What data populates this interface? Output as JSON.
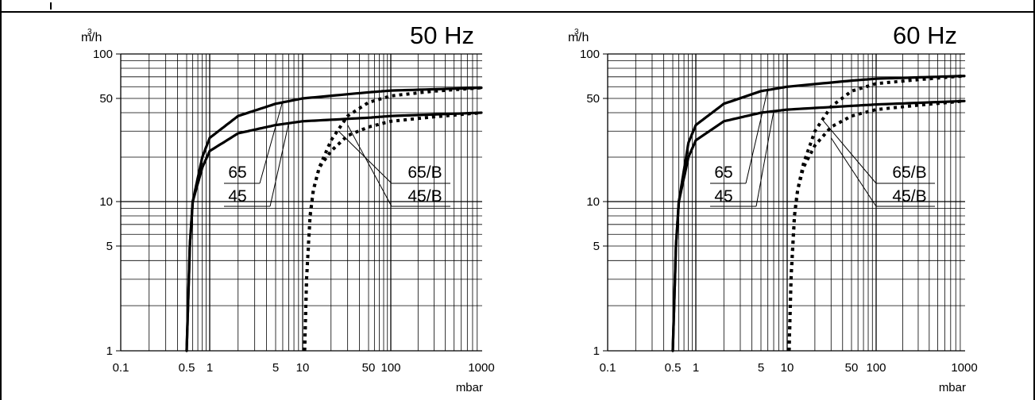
{
  "chart_data": [
    {
      "type": "line",
      "title": "50 Hz",
      "ylabel": "m³/h",
      "xlabel": "mbar",
      "xscale": "log",
      "yscale": "log",
      "xlim": [
        0.1,
        1000
      ],
      "ylim": [
        1,
        100
      ],
      "grid": true,
      "x_tick_labels": [
        "0.1",
        "0.5",
        "1",
        "5",
        "10",
        "50",
        "100",
        "1000"
      ],
      "y_tick_labels": [
        "1",
        "5",
        "10",
        "50",
        "100"
      ],
      "series": [
        {
          "name": "65",
          "style": "solid",
          "points": [
            [
              0.5,
              1
            ],
            [
              0.55,
              5
            ],
            [
              0.6,
              10
            ],
            [
              0.8,
              20
            ],
            [
              1,
              27
            ],
            [
              2,
              38
            ],
            [
              5,
              46
            ],
            [
              10,
              50
            ],
            [
              50,
              55
            ],
            [
              100,
              56.5
            ],
            [
              1000,
              59
            ]
          ]
        },
        {
          "name": "45",
          "style": "solid",
          "points": [
            [
              0.5,
              1
            ],
            [
              0.55,
              5
            ],
            [
              0.6,
              10
            ],
            [
              0.8,
              17
            ],
            [
              1,
              22
            ],
            [
              2,
              29
            ],
            [
              5,
              33
            ],
            [
              10,
              35
            ],
            [
              50,
              37
            ],
            [
              100,
              38
            ],
            [
              1000,
              40
            ]
          ]
        },
        {
          "name": "65/B",
          "style": "dotted",
          "points": [
            [
              10.5,
              1
            ],
            [
              11,
              3
            ],
            [
              12,
              8
            ],
            [
              13,
              12
            ],
            [
              15,
              17
            ],
            [
              20,
              26
            ],
            [
              30,
              38
            ],
            [
              50,
              47
            ],
            [
              100,
              52
            ],
            [
              300,
              56
            ],
            [
              1000,
              59
            ]
          ]
        },
        {
          "name": "45/B",
          "style": "dotted",
          "points": [
            [
              10.5,
              1
            ],
            [
              11,
              3
            ],
            [
              12,
              8
            ],
            [
              13,
              12
            ],
            [
              15,
              17
            ],
            [
              20,
              22
            ],
            [
              30,
              28
            ],
            [
              50,
              32
            ],
            [
              100,
              35
            ],
            [
              300,
              37.5
            ],
            [
              1000,
              40
            ]
          ]
        }
      ]
    },
    {
      "type": "line",
      "title": "60 Hz",
      "ylabel": "m³/h",
      "xlabel": "mbar",
      "xscale": "log",
      "yscale": "log",
      "xlim": [
        0.1,
        1000
      ],
      "ylim": [
        1,
        100
      ],
      "grid": true,
      "x_tick_labels": [
        "0.1",
        "0.5",
        "1",
        "5",
        "10",
        "50",
        "100",
        "1000"
      ],
      "y_tick_labels": [
        "1",
        "5",
        "10",
        "50",
        "100"
      ],
      "series": [
        {
          "name": "65",
          "style": "solid",
          "points": [
            [
              0.5,
              1
            ],
            [
              0.55,
              5
            ],
            [
              0.6,
              10
            ],
            [
              0.8,
              25
            ],
            [
              1,
              33
            ],
            [
              2,
              46
            ],
            [
              5,
              56
            ],
            [
              10,
              60
            ],
            [
              50,
              66
            ],
            [
              100,
              68
            ],
            [
              1000,
              71
            ]
          ]
        },
        {
          "name": "45",
          "style": "solid",
          "points": [
            [
              0.5,
              1
            ],
            [
              0.55,
              5
            ],
            [
              0.6,
              10
            ],
            [
              0.8,
              20
            ],
            [
              1,
              26
            ],
            [
              2,
              35
            ],
            [
              5,
              40
            ],
            [
              10,
              42
            ],
            [
              50,
              44.5
            ],
            [
              100,
              45.5
            ],
            [
              1000,
              48
            ]
          ]
        },
        {
          "name": "65/B",
          "style": "dotted",
          "points": [
            [
              10.5,
              1
            ],
            [
              11,
              3
            ],
            [
              12,
              8
            ],
            [
              13,
              12
            ],
            [
              15,
              18
            ],
            [
              20,
              30
            ],
            [
              30,
              44
            ],
            [
              50,
              56
            ],
            [
              100,
              63
            ],
            [
              300,
              67
            ],
            [
              1000,
              71
            ]
          ]
        },
        {
          "name": "45/B",
          "style": "dotted",
          "points": [
            [
              10.5,
              1
            ],
            [
              11,
              3
            ],
            [
              12,
              8
            ],
            [
              13,
              12
            ],
            [
              15,
              17
            ],
            [
              20,
              24
            ],
            [
              30,
              32
            ],
            [
              50,
              38
            ],
            [
              100,
              42
            ],
            [
              300,
              45
            ],
            [
              1000,
              48
            ]
          ]
        }
      ]
    }
  ]
}
